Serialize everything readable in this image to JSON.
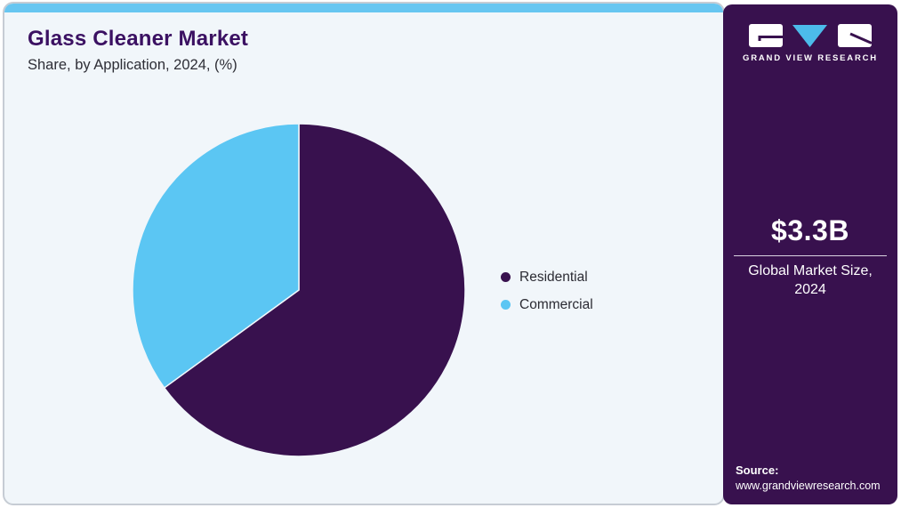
{
  "header": {
    "title": "Glass Cleaner Market",
    "subtitle": "Share, by Application, 2024, (%)"
  },
  "chart_data": {
    "type": "pie",
    "title": "Glass Cleaner Market Share, by Application, 2024, (%)",
    "slices": [
      {
        "label": "Residential",
        "value": 65,
        "color": "#38114e"
      },
      {
        "label": "Commercial",
        "value": 35,
        "color": "#5bc6f3"
      }
    ],
    "units": "% share (values estimated from arc angles; no data labels shown)",
    "start_angle_deg": 0,
    "direction": "clockwise",
    "legend_position": "right",
    "labels_shown": false,
    "slice_gap_color": "#f1f6fa"
  },
  "sidebar": {
    "brand": "GRAND VIEW RESEARCH",
    "market_size_value": "$3.3B",
    "market_size_label": "Global Market Size, 2024",
    "source_label": "Source:",
    "source_url": "www.grandviewresearch.com"
  },
  "colors": {
    "card_background": "#f1f6fa",
    "card_border": "#c6ccd4",
    "top_strip": "#67c6f1",
    "sidebar_background": "#38114e",
    "title_text": "#3b1162",
    "subtitle_text": "#2e2e36",
    "logo_triangle": "#4cbbea",
    "logo_glyph": "#38114e"
  }
}
